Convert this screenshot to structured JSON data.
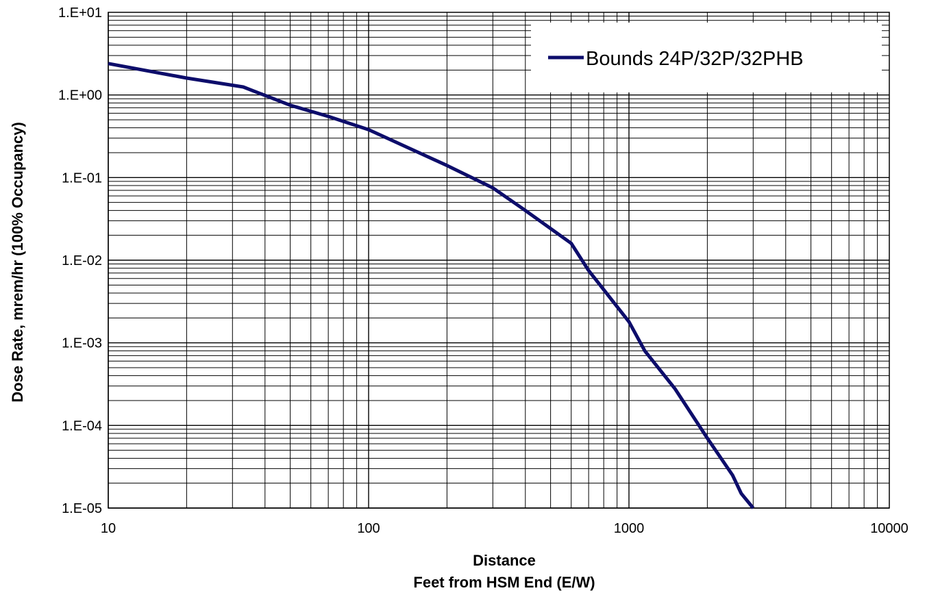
{
  "chart_data": {
    "type": "line",
    "xscale": "log",
    "yscale": "log",
    "xlim": [
      10,
      10000
    ],
    "ylim": [
      1e-05,
      10
    ],
    "grid": true,
    "legend_position": "top-right",
    "xlabel_line1": "Distance",
    "xlabel_line2": "Feet from HSM End (E/W)",
    "ylabel": "Dose Rate, mrem/hr  (100% Occupancy)",
    "x_tick_labels": [
      "10",
      "100",
      "1000",
      "10000"
    ],
    "y_tick_labels": [
      "1.E+01",
      "1.E+00",
      "1.E-01",
      "1.E-02",
      "1.E-03",
      "1.E-04",
      "1.E-05"
    ],
    "colors": {
      "series": "#0d0d6b",
      "grid": "#000000"
    },
    "series": [
      {
        "name": "Bounds 24P/32P/32PHB",
        "x": [
          10,
          20,
          33,
          50,
          70,
          100,
          200,
          300,
          400,
          600,
          700,
          1000,
          1150,
          1500,
          2000,
          2500,
          2700,
          3000
        ],
        "y": [
          2.4,
          1.6,
          1.25,
          0.75,
          0.55,
          0.38,
          0.14,
          0.075,
          0.04,
          0.016,
          0.0075,
          0.0018,
          0.0008,
          0.00028,
          7e-05,
          2.5e-05,
          1.5e-05,
          1e-05
        ]
      }
    ]
  }
}
